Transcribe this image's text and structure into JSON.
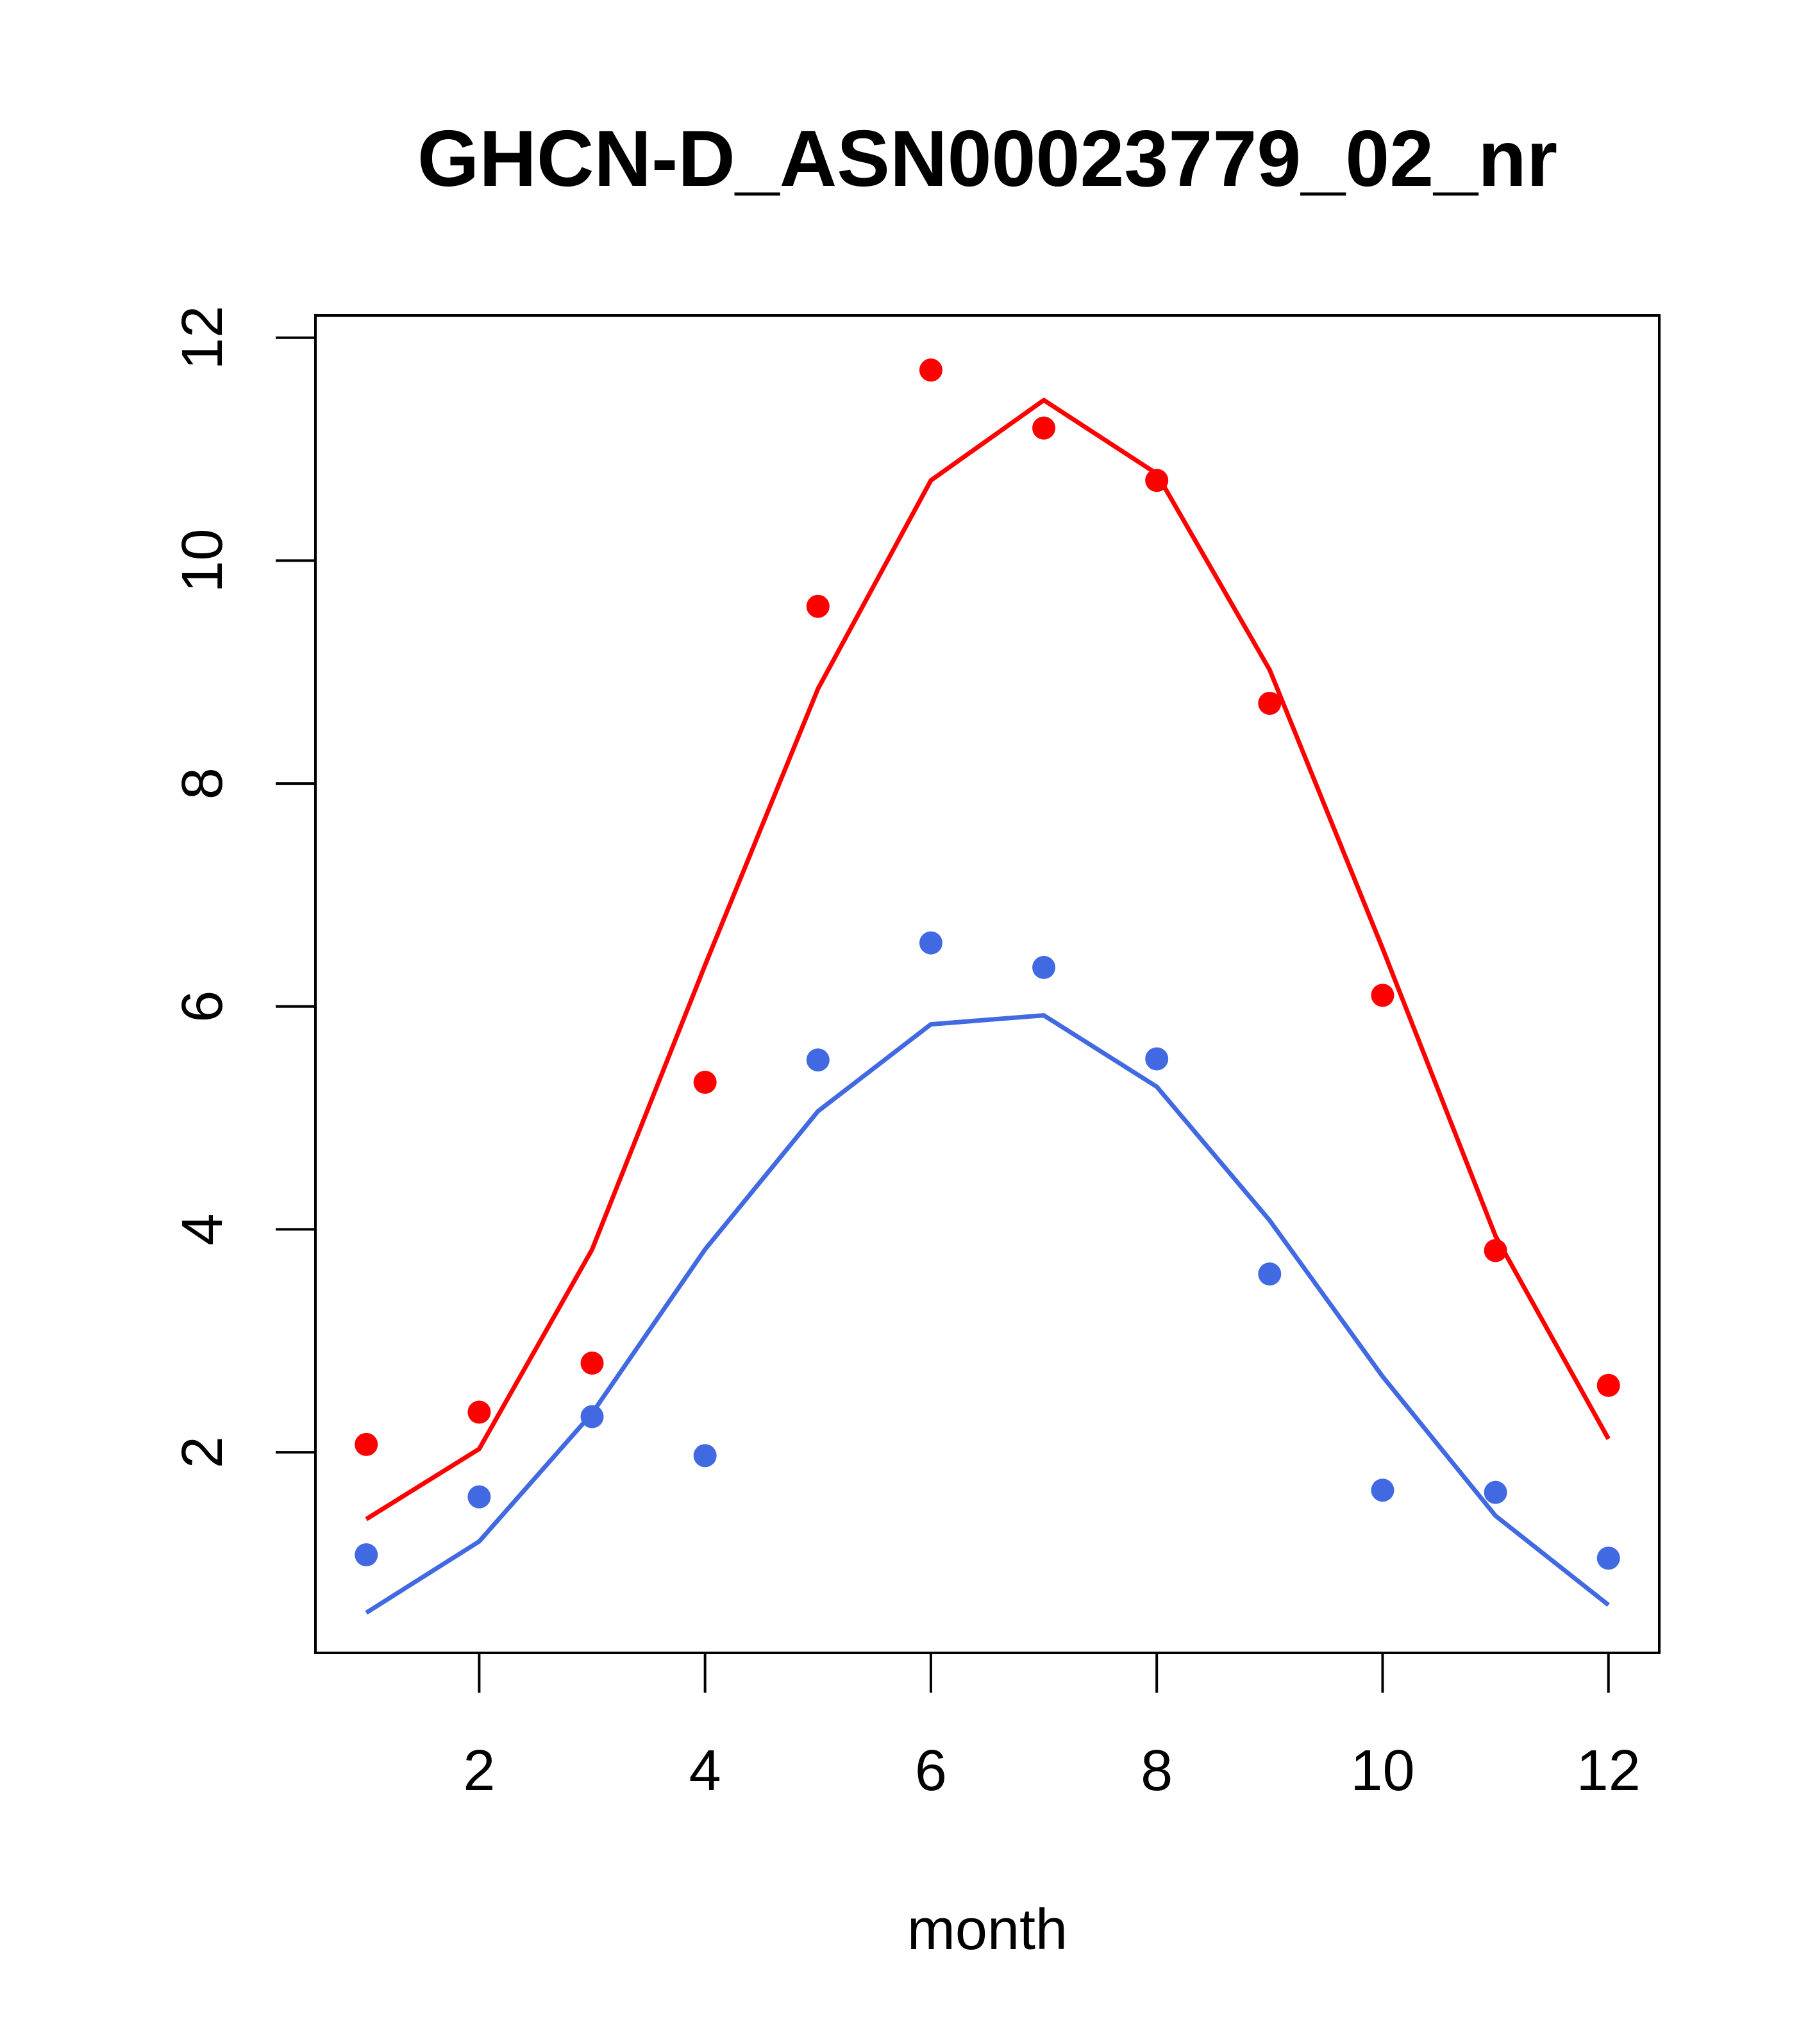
{
  "chart_data": {
    "type": "line",
    "title": "GHCN-D_ASN00023779_02_nr",
    "xlabel": "month",
    "ylabel": "",
    "xlim": [
      0.55,
      12.45
    ],
    "ylim": [
      0.2,
      12.2
    ],
    "x_ticks": [
      2,
      4,
      6,
      8,
      10,
      12
    ],
    "y_ticks": [
      2,
      4,
      6,
      8,
      10,
      12
    ],
    "grid": false,
    "legend": "none",
    "x": [
      1,
      2,
      3,
      4,
      5,
      6,
      7,
      8,
      9,
      10,
      11,
      12
    ],
    "series": [
      {
        "color": "#ff0000",
        "points": [
          2.07,
          2.36,
          2.8,
          5.32,
          9.59,
          11.71,
          11.19,
          10.72,
          8.72,
          6.1,
          3.81,
          2.6
        ],
        "line": [
          1.4,
          2.03,
          3.82,
          6.37,
          8.85,
          10.72,
          11.44,
          10.78,
          9.02,
          6.52,
          3.94,
          2.12
        ]
      },
      {
        "color": "#4169e1",
        "points": [
          1.08,
          1.6,
          2.32,
          1.97,
          5.52,
          6.57,
          6.35,
          5.53,
          3.6,
          1.66,
          1.64,
          1.05
        ],
        "line": [
          0.56,
          1.2,
          2.35,
          3.82,
          5.06,
          5.84,
          5.92,
          5.28,
          4.08,
          2.68,
          1.43,
          0.63
        ]
      }
    ]
  }
}
